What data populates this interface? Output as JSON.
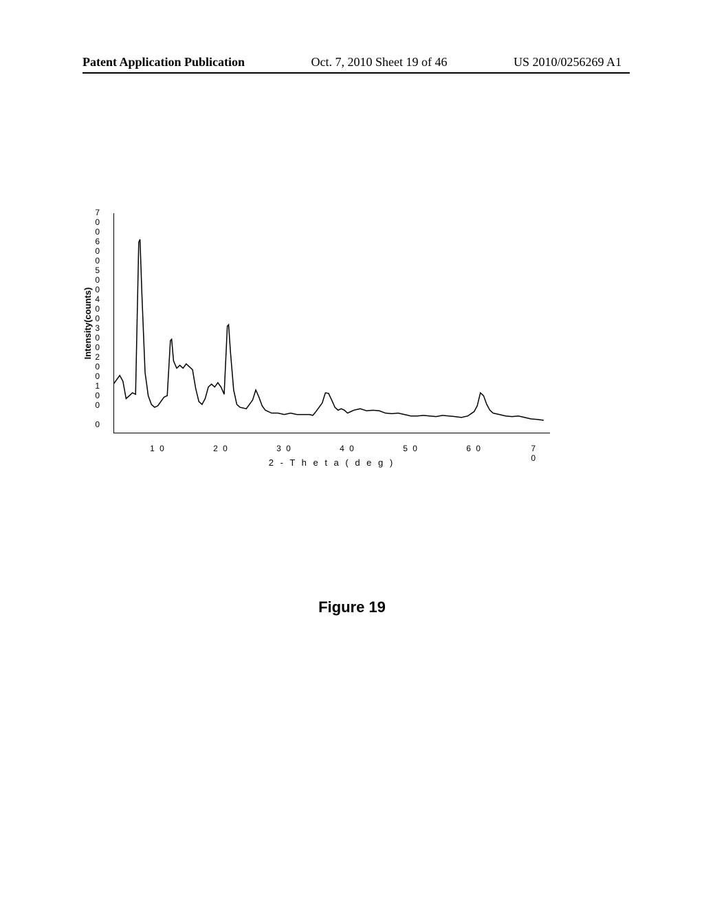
{
  "header": {
    "left": "Patent Application Publication",
    "center": "Oct. 7, 2010  Sheet 19 of 46",
    "right": "US 2010/0256269 A1"
  },
  "chart": {
    "type": "line",
    "y_label": "Intensity(counts)",
    "x_label": "2 - T h e t a ( d e g )",
    "ylim": [
      -30,
      730
    ],
    "xlim": [
      3,
      72
    ],
    "y_ticks": [
      0,
      100,
      200,
      300,
      400,
      500,
      600,
      700
    ],
    "x_ticks": [
      10,
      20,
      30,
      40,
      50,
      60,
      70
    ],
    "background_color": "#ffffff",
    "line_color": "#000000",
    "line_width": 1.5,
    "data_points": [
      [
        3,
        140
      ],
      [
        4,
        170
      ],
      [
        4.5,
        150
      ],
      [
        5,
        90
      ],
      [
        5.5,
        100
      ],
      [
        6,
        110
      ],
      [
        6.5,
        105
      ],
      [
        7,
        630
      ],
      [
        7.2,
        640
      ],
      [
        7.5,
        450
      ],
      [
        8,
        180
      ],
      [
        8.5,
        100
      ],
      [
        9,
        70
      ],
      [
        9.5,
        60
      ],
      [
        10,
        65
      ],
      [
        10.5,
        80
      ],
      [
        11,
        95
      ],
      [
        11.5,
        100
      ],
      [
        12,
        290
      ],
      [
        12.2,
        295
      ],
      [
        12.5,
        220
      ],
      [
        13,
        195
      ],
      [
        13.5,
        205
      ],
      [
        14,
        195
      ],
      [
        14.5,
        210
      ],
      [
        15,
        200
      ],
      [
        15.5,
        190
      ],
      [
        16,
        125
      ],
      [
        16.5,
        80
      ],
      [
        17,
        70
      ],
      [
        17.5,
        90
      ],
      [
        18,
        130
      ],
      [
        18.5,
        140
      ],
      [
        19,
        130
      ],
      [
        19.5,
        145
      ],
      [
        20,
        130
      ],
      [
        20.5,
        105
      ],
      [
        21,
        340
      ],
      [
        21.2,
        345
      ],
      [
        21.5,
        250
      ],
      [
        22,
        120
      ],
      [
        22.5,
        70
      ],
      [
        23,
        60
      ],
      [
        24,
        55
      ],
      [
        25,
        85
      ],
      [
        25.5,
        120
      ],
      [
        26,
        95
      ],
      [
        26.5,
        65
      ],
      [
        27,
        50
      ],
      [
        28,
        40
      ],
      [
        29,
        40
      ],
      [
        30,
        35
      ],
      [
        31,
        40
      ],
      [
        32,
        35
      ],
      [
        33,
        35
      ],
      [
        34,
        35
      ],
      [
        34.5,
        32
      ],
      [
        35,
        45
      ],
      [
        36,
        75
      ],
      [
        36.5,
        110
      ],
      [
        37,
        108
      ],
      [
        37.5,
        85
      ],
      [
        38,
        60
      ],
      [
        38.5,
        50
      ],
      [
        39,
        55
      ],
      [
        39.5,
        50
      ],
      [
        40,
        40
      ],
      [
        41,
        50
      ],
      [
        42,
        55
      ],
      [
        43,
        48
      ],
      [
        44,
        50
      ],
      [
        45,
        48
      ],
      [
        46,
        40
      ],
      [
        47,
        38
      ],
      [
        48,
        40
      ],
      [
        49,
        35
      ],
      [
        50,
        30
      ],
      [
        51,
        30
      ],
      [
        52,
        32
      ],
      [
        53,
        30
      ],
      [
        54,
        28
      ],
      [
        55,
        32
      ],
      [
        56,
        30
      ],
      [
        57,
        28
      ],
      [
        58,
        25
      ],
      [
        59,
        30
      ],
      [
        60,
        45
      ],
      [
        60.5,
        65
      ],
      [
        61,
        110
      ],
      [
        61.5,
        100
      ],
      [
        62,
        70
      ],
      [
        62.5,
        50
      ],
      [
        63,
        40
      ],
      [
        64,
        35
      ],
      [
        65,
        30
      ],
      [
        66,
        28
      ],
      [
        67,
        30
      ],
      [
        68,
        25
      ],
      [
        69,
        20
      ],
      [
        70,
        18
      ],
      [
        71,
        15
      ]
    ]
  },
  "figure_label": "Figure 19"
}
